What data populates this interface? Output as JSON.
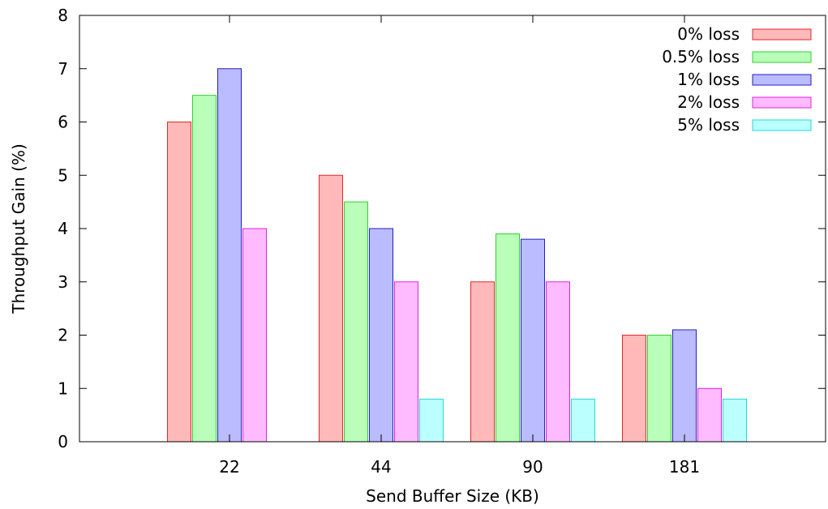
{
  "chart_data": {
    "type": "bar",
    "title": "",
    "xlabel": "Send Buffer Size (KB)",
    "ylabel": "Throughput Gain (%)",
    "ylim": [
      0,
      8
    ],
    "yticks": [
      "0",
      "1",
      "2",
      "3",
      "4",
      "5",
      "6",
      "7",
      "8"
    ],
    "categories": [
      "22",
      "44",
      "90",
      "181"
    ],
    "grid": false,
    "legend_position": "top-right",
    "series": [
      {
        "name": "0% loss",
        "values": [
          6.0,
          5.0,
          3.0,
          2.0
        ],
        "fill": "#ffb9b9",
        "stroke": "#e8262a"
      },
      {
        "name": "0.5% loss",
        "values": [
          6.5,
          4.5,
          3.9,
          2.0
        ],
        "fill": "#b9ffb9",
        "stroke": "#2ed12e"
      },
      {
        "name": "1% loss",
        "values": [
          7.0,
          4.0,
          3.8,
          2.1
        ],
        "fill": "#bbbbff",
        "stroke": "#2222bb"
      },
      {
        "name": "2% loss",
        "values": [
          4.0,
          3.0,
          3.0,
          1.0
        ],
        "fill": "#ffbbff",
        "stroke": "#e020e0"
      },
      {
        "name": "5% loss",
        "values": [
          null,
          0.8,
          0.8,
          0.8
        ],
        "fill": "#bbffff",
        "stroke": "#22d8d8"
      }
    ]
  }
}
